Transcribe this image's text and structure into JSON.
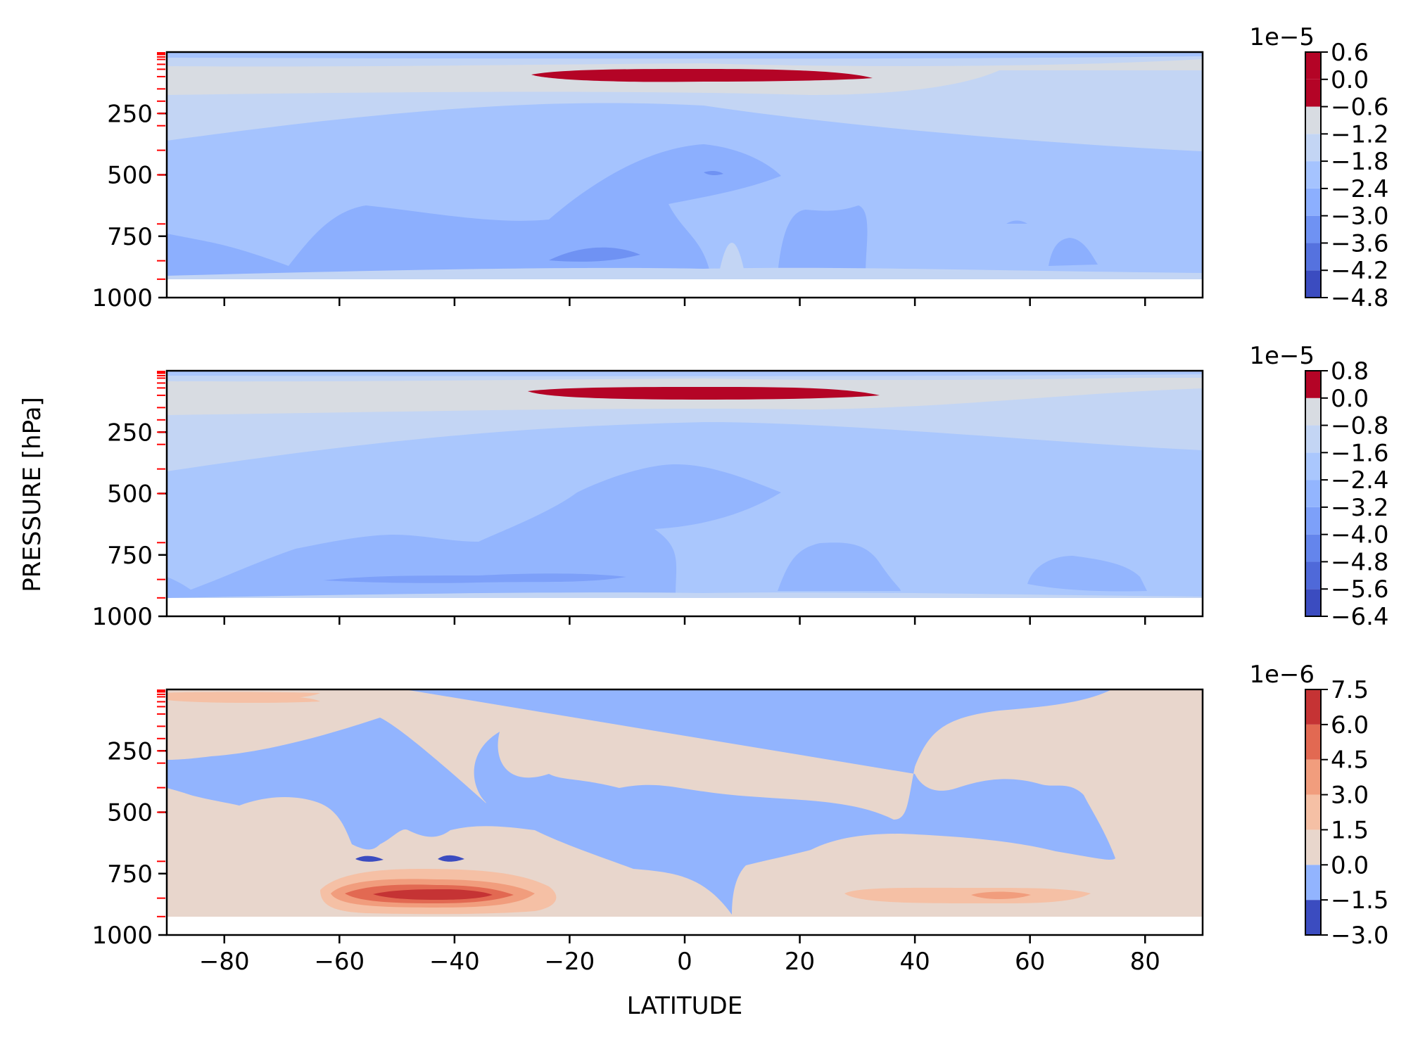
{
  "chart_data": {
    "type": "contourf",
    "shared_xlabel": "LATITUDE",
    "shared_ylabel": "PRESSURE [hPa]",
    "x_ticks": [
      -80,
      -60,
      -40,
      -20,
      0,
      20,
      40,
      60,
      80
    ],
    "x_tick_labels": [
      "−80",
      "−60",
      "−40",
      "−20",
      "0",
      "20",
      "40",
      "60",
      "80"
    ],
    "xlim": [
      -90,
      90
    ],
    "y_ticks": [
      250,
      500,
      750,
      1000
    ],
    "y_tick_labels": [
      "250",
      "500",
      "750",
      "1000"
    ],
    "ylim": [
      1000,
      0
    ],
    "y_inverted": true,
    "colormap": "coolwarm",
    "model_levels_hpa": [
      3,
      7,
      10,
      20,
      30,
      50,
      70,
      100,
      150,
      200,
      250,
      300,
      400,
      500,
      700,
      850,
      925
    ],
    "panels": [
      {
        "colorbar": {
          "offset_label": "1e−5",
          "level_labels": [
            "0.6",
            "0.0",
            "−0.6",
            "−1.2",
            "−1.8",
            "−2.4",
            "−3.0",
            "−3.6",
            "−4.2",
            "−4.8"
          ],
          "level_colors": [
            "#3b4cc0",
            "#5572df",
            "#6f92f3",
            "#8caffe",
            "#a5c3fe",
            "#c3d5f4",
            "#d8dce2",
            "#b40426"
          ]
        }
      },
      {
        "colorbar": {
          "offset_label": "1e−5",
          "level_labels": [
            "0.8",
            "0.0",
            "−0.8",
            "−1.6",
            "−2.4",
            "−3.2",
            "−4.0",
            "−4.8",
            "−5.6",
            "−6.4"
          ],
          "level_colors": [
            "#3b4cc0",
            "#4f69d9",
            "#6485ec",
            "#7da0f9",
            "#93b5fe",
            "#aac7fd",
            "#c3d5f4",
            "#d8dce2",
            "#b40426"
          ]
        }
      },
      {
        "colorbar": {
          "offset_label": "1e−6",
          "level_labels": [
            "7.5",
            "6.0",
            "4.5",
            "3.0",
            "1.5",
            "0.0",
            "−1.5",
            "−3.0"
          ],
          "level_colors": [
            "#3b4cc0",
            "#92b4fe",
            "#e8d6cc",
            "#f5c0a5",
            "#f19d7d",
            "#e26952",
            "#c53334"
          ]
        }
      }
    ]
  }
}
